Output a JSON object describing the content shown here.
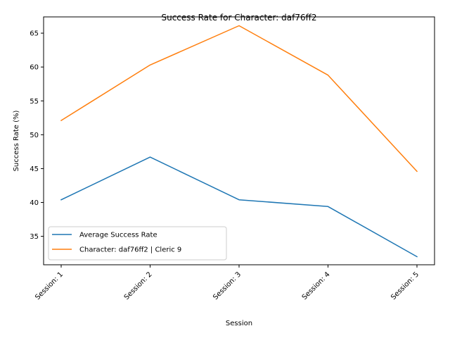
{
  "chart_data": {
    "type": "line",
    "title": "Success Rate for Character: daf76ff2",
    "xlabel": "Session",
    "ylabel": "Success Rate (%)",
    "categories": [
      "Session: 1",
      "Session: 2",
      "Session: 3",
      "Session: 4",
      "Session: 5"
    ],
    "ylim": [
      30.8,
      67.4
    ],
    "yticks": [
      35,
      40,
      45,
      50,
      55,
      60,
      65
    ],
    "grid": false,
    "legend_position": "lower-left",
    "series": [
      {
        "name": "Average Success Rate",
        "color": "#1f77b4",
        "values": [
          40.4,
          46.7,
          40.4,
          39.4,
          32.0
        ]
      },
      {
        "name": "Character: daf76ff2 | Cleric 9",
        "color": "#ff7f0e",
        "values": [
          52.1,
          60.3,
          66.1,
          58.8,
          44.6
        ]
      }
    ]
  }
}
